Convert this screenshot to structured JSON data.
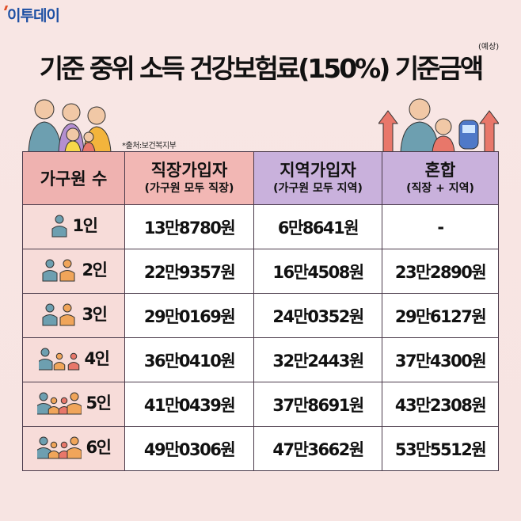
{
  "logo": "이투데이",
  "title": "기준 중위 소득 건강보험료(150%) 기준금액",
  "title_note": "(예상)",
  "source": "*출처:보건복지부",
  "table": {
    "headers": [
      {
        "main": "가구원 수",
        "sub": ""
      },
      {
        "main": "직장가입자",
        "sub": "(가구원 모두 직장)"
      },
      {
        "main": "지역가입자",
        "sub": "(가구원 모두 지역)"
      },
      {
        "main": "혼합",
        "sub": "(직장 + 지역)"
      }
    ],
    "rows": [
      {
        "size": "1인",
        "people_icon_count": 1,
        "employee": "13만8780원",
        "regional": "6만8641원",
        "mixed": "-"
      },
      {
        "size": "2인",
        "people_icon_count": 2,
        "employee": "22만9357원",
        "regional": "16만4508원",
        "mixed": "23만2890원"
      },
      {
        "size": "3인",
        "people_icon_count": 2,
        "employee": "29만0169원",
        "regional": "24만0352원",
        "mixed": "29만6127원"
      },
      {
        "size": "4인",
        "people_icon_count": 3,
        "employee": "36만0410원",
        "regional": "32만2443원",
        "mixed": "37만4300원"
      },
      {
        "size": "5인",
        "people_icon_count": 4,
        "employee": "41만0439원",
        "regional": "37만8691원",
        "mixed": "43만2308원"
      },
      {
        "size": "6인",
        "people_icon_count": 4,
        "employee": "49만0306원",
        "regional": "47만3662원",
        "mixed": "53만5512원"
      }
    ]
  },
  "colors": {
    "background": "#f8e6e4",
    "header_pink": "#f2b7b4",
    "header_purple": "#c9b1dc",
    "first_col": "#f7dcd9",
    "person_blue": "#6d9fb0",
    "person_orange": "#f0a55a",
    "person_red": "#e8776a"
  }
}
